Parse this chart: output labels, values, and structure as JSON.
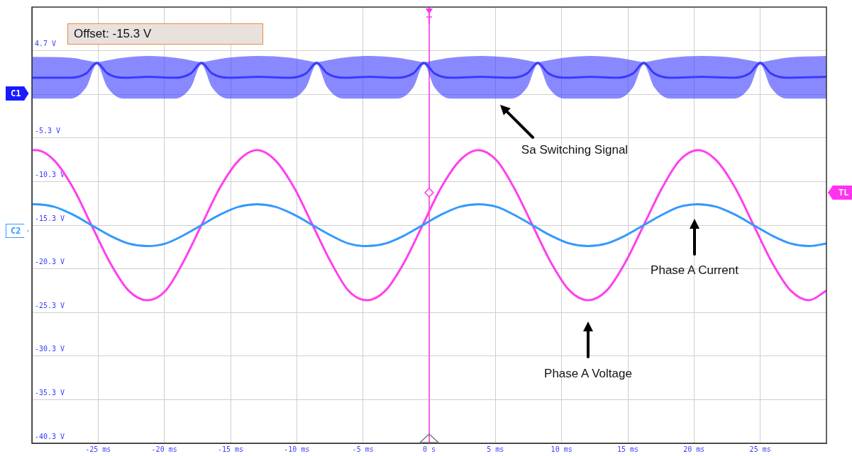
{
  "chart_data": {
    "type": "line",
    "marker": "none",
    "grid": true,
    "xlim": [
      -30,
      30
    ],
    "xticks": [
      {
        "value": -25,
        "label": "-25 ms"
      },
      {
        "value": -20,
        "label": "-20 ms"
      },
      {
        "value": -15,
        "label": "-15 ms"
      },
      {
        "value": -10,
        "label": "-10 ms"
      },
      {
        "value": -5,
        "label": "-5 ms"
      },
      {
        "value": 0,
        "label": "0 s"
      },
      {
        "value": 5,
        "label": "5 ms"
      },
      {
        "value": 10,
        "label": "10 ms"
      },
      {
        "value": 15,
        "label": "15 ms"
      },
      {
        "value": 20,
        "label": "20 ms"
      },
      {
        "value": 25,
        "label": "25 ms"
      }
    ],
    "ylim": [
      -40.3,
      9.7
    ],
    "yticks": [
      {
        "value": -40.3,
        "label": "-40.3 V"
      },
      {
        "value": -35.3,
        "label": "-35.3 V"
      },
      {
        "value": -30.3,
        "label": "-30.3 V"
      },
      {
        "value": -25.3,
        "label": "-25.3 V"
      },
      {
        "value": -20.3,
        "label": "-20.3 V"
      },
      {
        "value": -15.3,
        "label": "-15.3 V"
      },
      {
        "value": -10.3,
        "label": "-10.3 V"
      },
      {
        "value": -5.3,
        "label": "-5.3 V"
      },
      {
        "value": -0.3,
        "label": null
      },
      {
        "value": 4.7,
        "label": "4.7 V"
      }
    ],
    "x": [
      -30,
      -29.7,
      -28.3,
      -26.9,
      -25.5,
      -24.1,
      -22.7,
      -21.3,
      -19.9,
      -18.6,
      -17.2,
      -15.8,
      -14.4,
      -13.0,
      -11.6,
      -10.2,
      -8.8,
      -7.4,
      -6.1,
      -4.7,
      -3.3,
      -1.9,
      -0.5,
      0.9,
      2.3,
      3.7,
      5.1,
      6.4,
      7.8,
      9.2,
      10.6,
      12.0,
      13.4,
      14.8,
      16.2,
      17.6,
      18.9,
      20.3,
      21.7,
      23.1,
      24.5,
      25.9,
      27.3,
      28.7,
      30
    ],
    "series": [
      {
        "color": "#3a3aff",
        "x": [
          -30,
          -27.1,
          -25.9,
          -25.1,
          -24.3,
          -23.1,
          -21.2,
          -19.2,
          -18.0,
          -17.2,
          -16.4,
          -15.2,
          -12.9,
          -10.5,
          -9.3,
          -8.5,
          -7.7,
          -6.5,
          -4.5,
          -2.4,
          -1.2,
          -0.4,
          0.4,
          1.6,
          3.9,
          6.2,
          7.4,
          8.2,
          9.0,
          10.2,
          12.2,
          14.2,
          15.4,
          16.2,
          17.0,
          18.2,
          20.6,
          23.0,
          24.2,
          25.0,
          25.8,
          27.0,
          30
        ],
        "values": [
          1.6,
          1.6,
          2.1,
          3.3,
          2.1,
          1.6,
          1.7,
          1.6,
          2.1,
          3.3,
          2.1,
          1.6,
          1.7,
          1.6,
          2.1,
          3.3,
          2.1,
          1.6,
          1.7,
          1.6,
          2.1,
          3.3,
          2.1,
          1.6,
          1.7,
          1.6,
          2.1,
          3.3,
          2.1,
          1.6,
          1.7,
          1.6,
          2.1,
          3.3,
          2.1,
          1.6,
          1.7,
          1.6,
          2.1,
          3.3,
          2.1,
          1.6,
          1.7
        ],
        "upper": [
          4.0,
          3.9,
          3.6,
          3.4,
          3.6,
          3.9,
          4.1,
          3.9,
          3.6,
          3.4,
          3.6,
          3.9,
          4.1,
          3.9,
          3.6,
          3.4,
          3.6,
          3.9,
          4.1,
          3.9,
          3.6,
          3.4,
          3.6,
          3.9,
          4.1,
          3.9,
          3.6,
          3.4,
          3.6,
          3.9,
          4.1,
          3.9,
          3.6,
          3.4,
          3.6,
          3.9,
          4.1,
          3.9,
          3.6,
          3.4,
          3.6,
          3.9,
          4.1
        ],
        "lower": [
          -0.8,
          -0.8,
          0.5,
          3.1,
          0.5,
          -0.8,
          -0.8,
          -0.8,
          0.5,
          3.1,
          0.5,
          -0.8,
          -0.8,
          -0.8,
          0.5,
          3.1,
          0.5,
          -0.8,
          -0.8,
          -0.8,
          0.5,
          3.1,
          0.5,
          -0.8,
          -0.8,
          -0.8,
          0.5,
          3.1,
          0.5,
          -0.8,
          -0.8,
          -0.8,
          0.5,
          3.1,
          0.5,
          -0.8,
          -0.8,
          -0.8,
          0.5,
          3.1,
          0.5,
          -0.8,
          -0.8
        ]
      },
      {
        "color": "#3399ff",
        "values": [
          -12.9,
          -12.9,
          -13.2,
          -14.1,
          -15.3,
          -16.5,
          -17.4,
          -17.7,
          -17.4,
          -16.5,
          -15.3,
          -14.1,
          -13.2,
          -12.9,
          -13.2,
          -14.1,
          -15.3,
          -16.5,
          -17.4,
          -17.7,
          -17.4,
          -16.5,
          -15.3,
          -14.1,
          -13.2,
          -12.9,
          -13.2,
          -14.1,
          -15.3,
          -16.5,
          -17.4,
          -17.7,
          -17.4,
          -16.5,
          -15.3,
          -14.1,
          -13.2,
          -12.9,
          -13.2,
          -14.1,
          -15.3,
          -16.5,
          -17.4,
          -17.7,
          -17.4
        ]
      },
      {
        "color": "#ff40ee",
        "values": [
          -6.7,
          -6.7,
          -7.9,
          -11.0,
          -15.3,
          -19.6,
          -22.8,
          -23.9,
          -22.8,
          -19.6,
          -15.3,
          -11.0,
          -7.9,
          -6.7,
          -7.9,
          -11.0,
          -15.3,
          -19.6,
          -22.8,
          -23.9,
          -22.8,
          -19.6,
          -15.3,
          -11.0,
          -7.9,
          -6.7,
          -7.9,
          -11.0,
          -15.3,
          -19.6,
          -22.8,
          -23.9,
          -22.8,
          -19.6,
          -15.3,
          -11.0,
          -7.9,
          -6.7,
          -7.9,
          -11.0,
          -15.3,
          -19.6,
          -22.8,
          -23.9,
          -22.8
        ]
      }
    ],
    "ref_lines": [
      {
        "axis": "x",
        "value": 0,
        "color": "#ff33ee"
      }
    ],
    "annotations": [
      "Offset: -15.3 V",
      "C1",
      "C2",
      "TL",
      "Sa Switching Signal",
      "Phase A Current",
      "Phase A Voltage"
    ]
  }
}
